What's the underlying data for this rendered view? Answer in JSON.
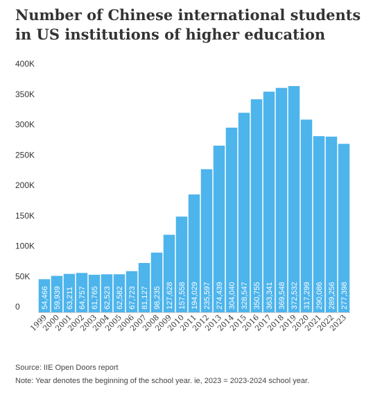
{
  "title": "Number of Chinese international students in US institutions of higher education",
  "source": "Source: IIE Open Doors report",
  "note": "Note: Year denotes the beginning of the school year. ie, 2023 = 2023-2024 school year.",
  "colors": {
    "bar": "#4db4ec",
    "text": "#333333",
    "grid": "#dddddd"
  },
  "chart_data": {
    "type": "bar",
    "categories": [
      "1999",
      "2000",
      "2001",
      "2002",
      "2003",
      "2004",
      "2005",
      "2006",
      "2007",
      "2008",
      "2009",
      "2010",
      "2011",
      "2012",
      "2013",
      "2014",
      "2015",
      "2016",
      "2017",
      "2018",
      "2019",
      "2020",
      "2021",
      "2022",
      "2023"
    ],
    "values": [
      54466,
      59939,
      63211,
      64757,
      61765,
      62523,
      62582,
      67723,
      81127,
      98235,
      127628,
      157558,
      194029,
      235597,
      274439,
      304040,
      328547,
      350755,
      363341,
      369548,
      372532,
      317299,
      290086,
      289256,
      277398
    ],
    "value_labels": [
      "54,466",
      "59,939",
      "63,211",
      "64,757",
      "61,765",
      "62,523",
      "62,582",
      "67,723",
      "81,127",
      "98,235",
      "127,628",
      "157,558",
      "194,029",
      "235,597",
      "274,439",
      "304,040",
      "328,547",
      "350,755",
      "363,341",
      "369,548",
      "372,532",
      "317,299",
      "290,086",
      "289,256",
      "277,398"
    ],
    "y_ticks": [
      0,
      50000,
      100000,
      150000,
      200000,
      250000,
      300000,
      350000,
      400000
    ],
    "y_tick_labels": [
      "0",
      "50K",
      "100K",
      "150K",
      "200K",
      "250K",
      "300K",
      "350K",
      "400K"
    ],
    "ylim": [
      0,
      400000
    ],
    "xlabel": "",
    "ylabel": ""
  }
}
